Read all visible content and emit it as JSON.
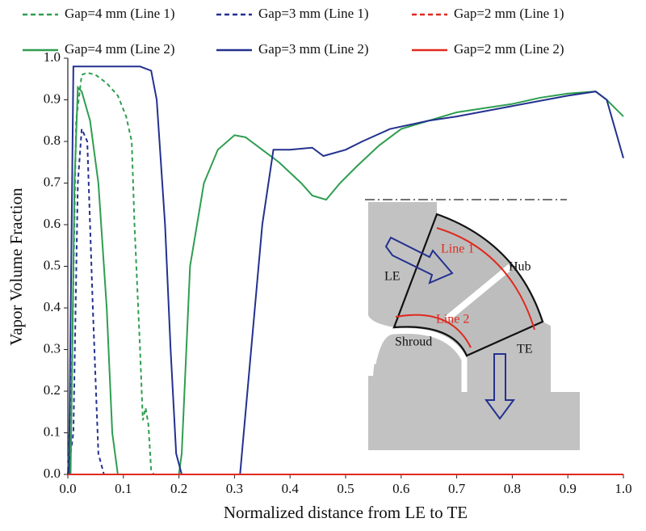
{
  "chart_data": {
    "type": "line",
    "xlabel": "Normalized distance from LE to TE",
    "ylabel": "Vapor Volume Fraction",
    "xlim": [
      0,
      1
    ],
    "ylim": [
      0,
      1
    ],
    "xticks": [
      {
        "value": 0,
        "label": "0.0"
      },
      0.1,
      0.2,
      0.3,
      0.4,
      0.5,
      0.6,
      0.7,
      0.8,
      0.9,
      {
        "value": 1,
        "label": "1.0"
      }
    ],
    "yticks": [
      {
        "value": 0,
        "label": "0.0"
      },
      0.1,
      0.2,
      0.3,
      0.4,
      0.5,
      0.6,
      0.7,
      0.8,
      0.9,
      {
        "value": 1,
        "label": "1.0"
      }
    ],
    "series": [
      {
        "name": "Gap=4 mm (Line 1)",
        "color": "#2e9e50",
        "line_style": "dashed",
        "x": [
          0,
          0.008,
          0.015,
          0.025,
          0.035,
          0.05,
          0.07,
          0.09,
          0.105,
          0.115,
          0.12,
          0.13,
          0.135,
          0.14,
          0.145,
          0.15,
          0.155
        ],
        "values": [
          0,
          0.3,
          0.85,
          0.96,
          0.965,
          0.96,
          0.94,
          0.91,
          0.86,
          0.8,
          0.6,
          0.3,
          0.13,
          0.16,
          0.12,
          0.01,
          0
        ]
      },
      {
        "name": "Gap=3 mm (Line 1)",
        "color": "#23318f",
        "line_style": "dashed",
        "x": [
          0,
          0.01,
          0.018,
          0.025,
          0.035,
          0.045,
          0.055,
          0.065
        ],
        "values": [
          0,
          0.1,
          0.7,
          0.83,
          0.8,
          0.4,
          0.05,
          0
        ]
      },
      {
        "name": "Gap=2 mm (Line 1)",
        "color": "#e02a1f",
        "line_style": "dashed",
        "x": [
          0,
          1
        ],
        "values": [
          0,
          0
        ]
      },
      {
        "name": "Gap=4 mm (Line 2)",
        "color": "#2e9e50",
        "line_style": "solid",
        "x": [
          0,
          0.005,
          0.012,
          0.018,
          0.025,
          0.04,
          0.055,
          0.07,
          0.08,
          0.09,
          0.2,
          0.205,
          0.22,
          0.245,
          0.27,
          0.3,
          0.32,
          0.35,
          0.38,
          0.42,
          0.44,
          0.465,
          0.49,
          0.52,
          0.56,
          0.6,
          0.65,
          0.7,
          0.75,
          0.8,
          0.85,
          0.9,
          0.95,
          0.97,
          1
        ],
        "values": [
          0,
          0,
          0.7,
          0.93,
          0.92,
          0.85,
          0.7,
          0.4,
          0.1,
          0,
          0,
          0.05,
          0.5,
          0.7,
          0.78,
          0.815,
          0.81,
          0.78,
          0.75,
          0.7,
          0.67,
          0.66,
          0.7,
          0.74,
          0.79,
          0.83,
          0.85,
          0.87,
          0.88,
          0.89,
          0.905,
          0.915,
          0.92,
          0.9,
          0.86
        ]
      },
      {
        "name": "Gap=3 mm (Line 2)",
        "color": "#23318f",
        "line_style": "solid",
        "x": [
          0,
          0.002,
          0.01,
          0.05,
          0.13,
          0.15,
          0.16,
          0.175,
          0.185,
          0.195,
          0.205,
          0.31,
          0.33,
          0.35,
          0.37,
          0.4,
          0.44,
          0.46,
          0.5,
          0.53,
          0.58,
          0.65,
          0.7,
          0.76,
          0.82,
          0.9,
          0.95,
          0.97,
          1
        ],
        "values": [
          0,
          0,
          0.98,
          0.98,
          0.98,
          0.97,
          0.9,
          0.6,
          0.3,
          0.05,
          0,
          0,
          0.3,
          0.6,
          0.78,
          0.78,
          0.785,
          0.765,
          0.78,
          0.8,
          0.83,
          0.85,
          0.86,
          0.875,
          0.89,
          0.91,
          0.92,
          0.9,
          0.76
        ]
      },
      {
        "name": "Gap=2 mm (Line 2)",
        "color": "#e02a1f",
        "line_style": "solid",
        "x": [
          0,
          1
        ],
        "values": [
          0,
          0
        ]
      }
    ]
  },
  "inset": {
    "labels": {
      "le": "LE",
      "hub": "Hub",
      "line1": "Line 1",
      "line2": "Line 2",
      "shroud": "Shroud",
      "te": "TE"
    }
  }
}
